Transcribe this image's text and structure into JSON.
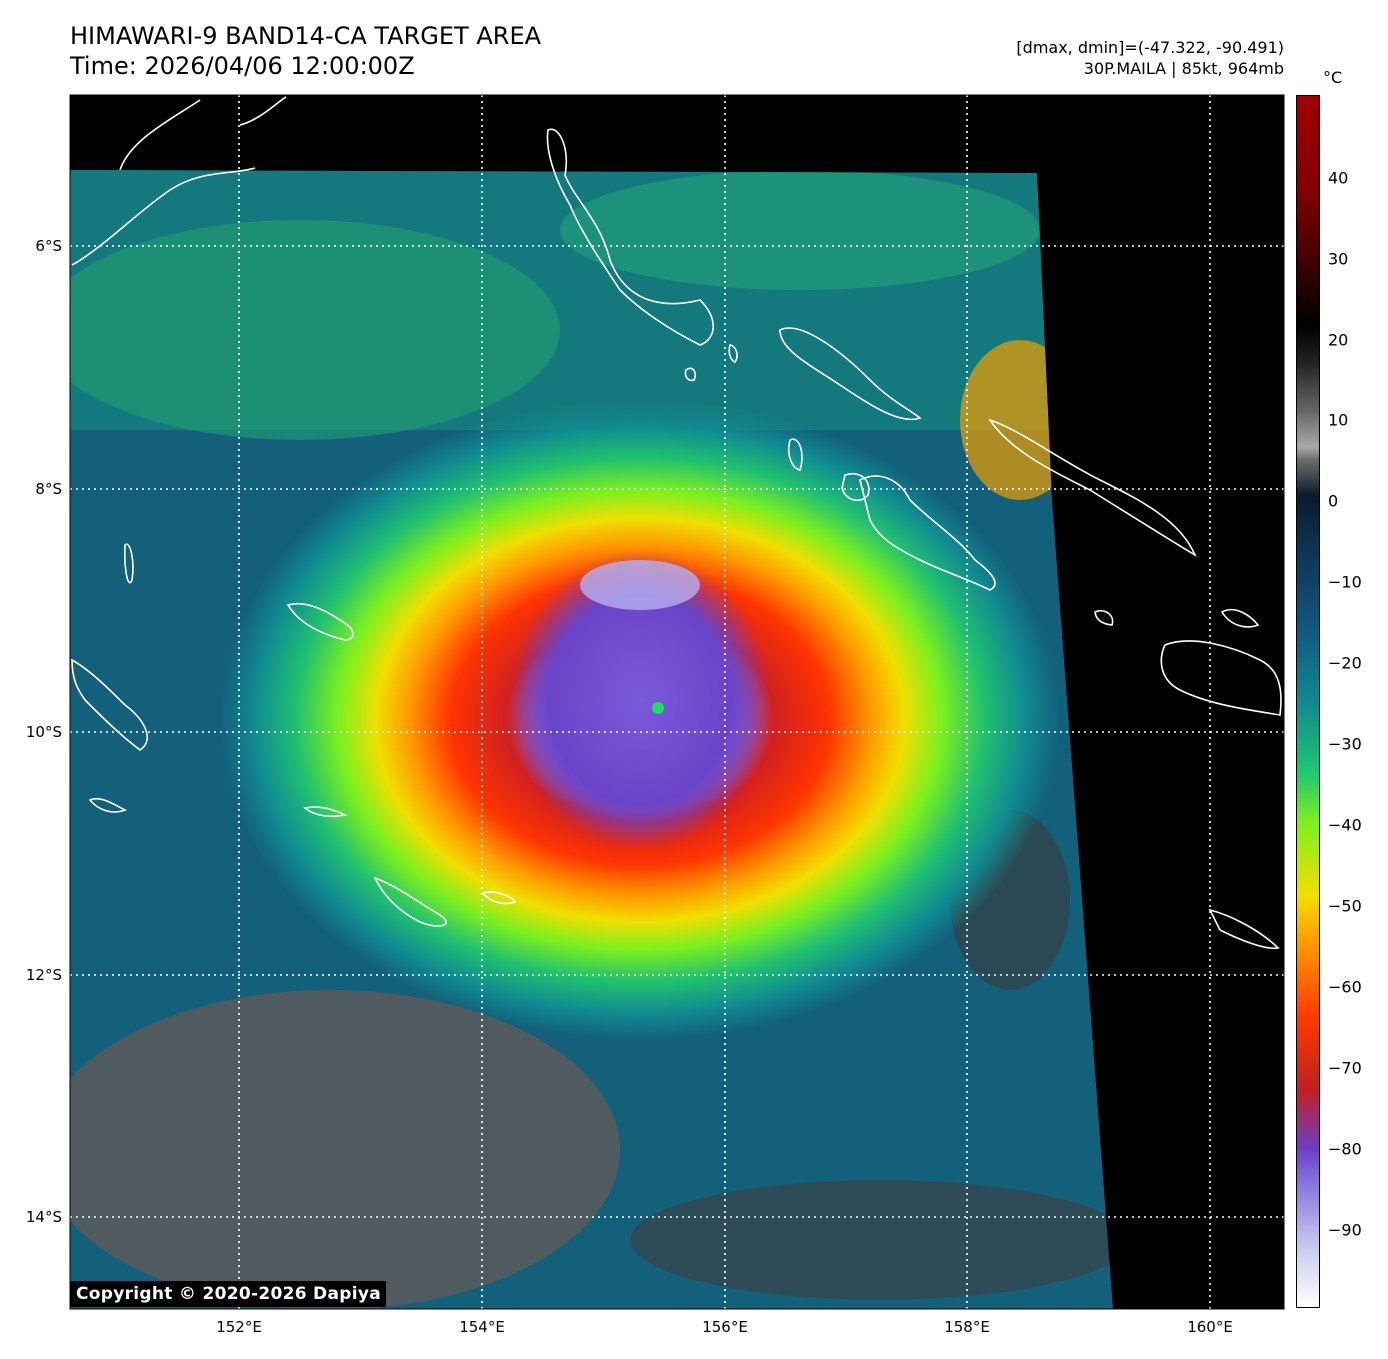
{
  "header": {
    "title_line1": "HIMAWARI-9 BAND14-CA TARGET AREA",
    "title_line2": "Time: 2026/04/06 12:00:00Z",
    "dmax_dmin": "[dmax, dmin]=(-47.322, -90.491)",
    "storm_info": "30P.MAILA | 85kt, 964mb"
  },
  "map": {
    "lon_ticks": [
      "152°E",
      "154°E",
      "156°E",
      "158°E",
      "160°E"
    ],
    "lat_ticks": [
      "6°S",
      "8°S",
      "10°S",
      "12°S",
      "14°S"
    ],
    "storm_center": {
      "lon": 155.5,
      "lat": -9.8
    }
  },
  "colorbar": {
    "unit": "°C",
    "ticks": [
      "40",
      "30",
      "20",
      "10",
      "0",
      "−10",
      "−20",
      "−30",
      "−40",
      "−50",
      "−60",
      "−70",
      "−80",
      "−90"
    ]
  },
  "copyright": "Copyright © 2020-2026 Dapiya"
}
